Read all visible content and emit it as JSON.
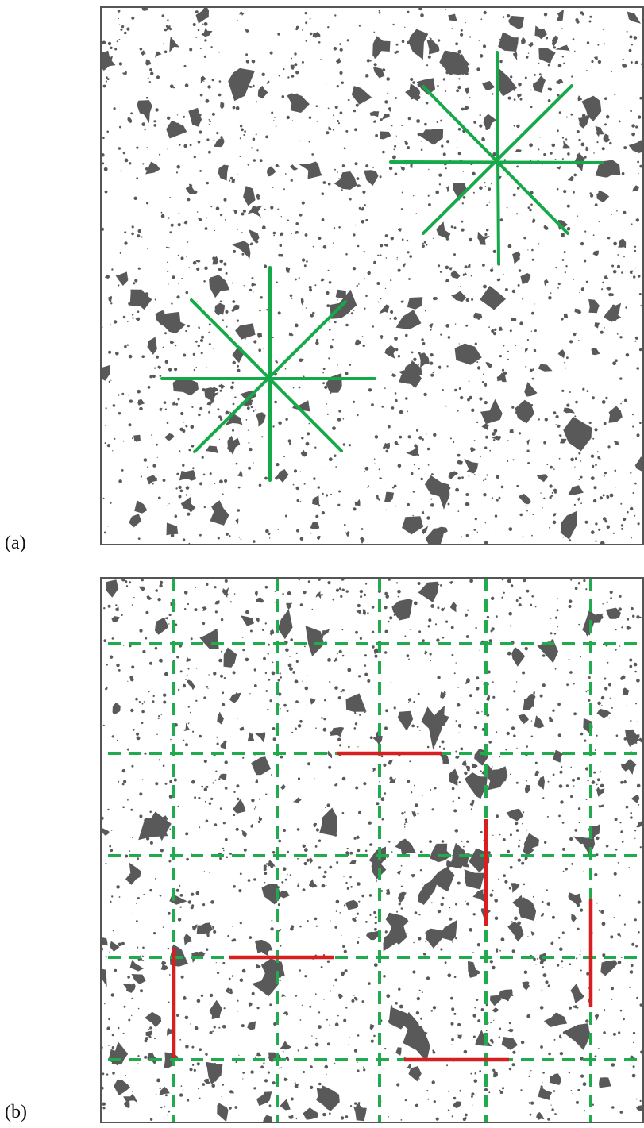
{
  "figure": {
    "panel_a": {
      "label": "(a)"
    },
    "panel_b": {
      "label": "(b)"
    }
  },
  "colors": {
    "background": "#ffffff",
    "pore": "#595959",
    "frame": "#555555",
    "green_line": "#16a94a",
    "dashed_grid": "#22aa4f",
    "red_segment": "#d81e1e"
  }
}
